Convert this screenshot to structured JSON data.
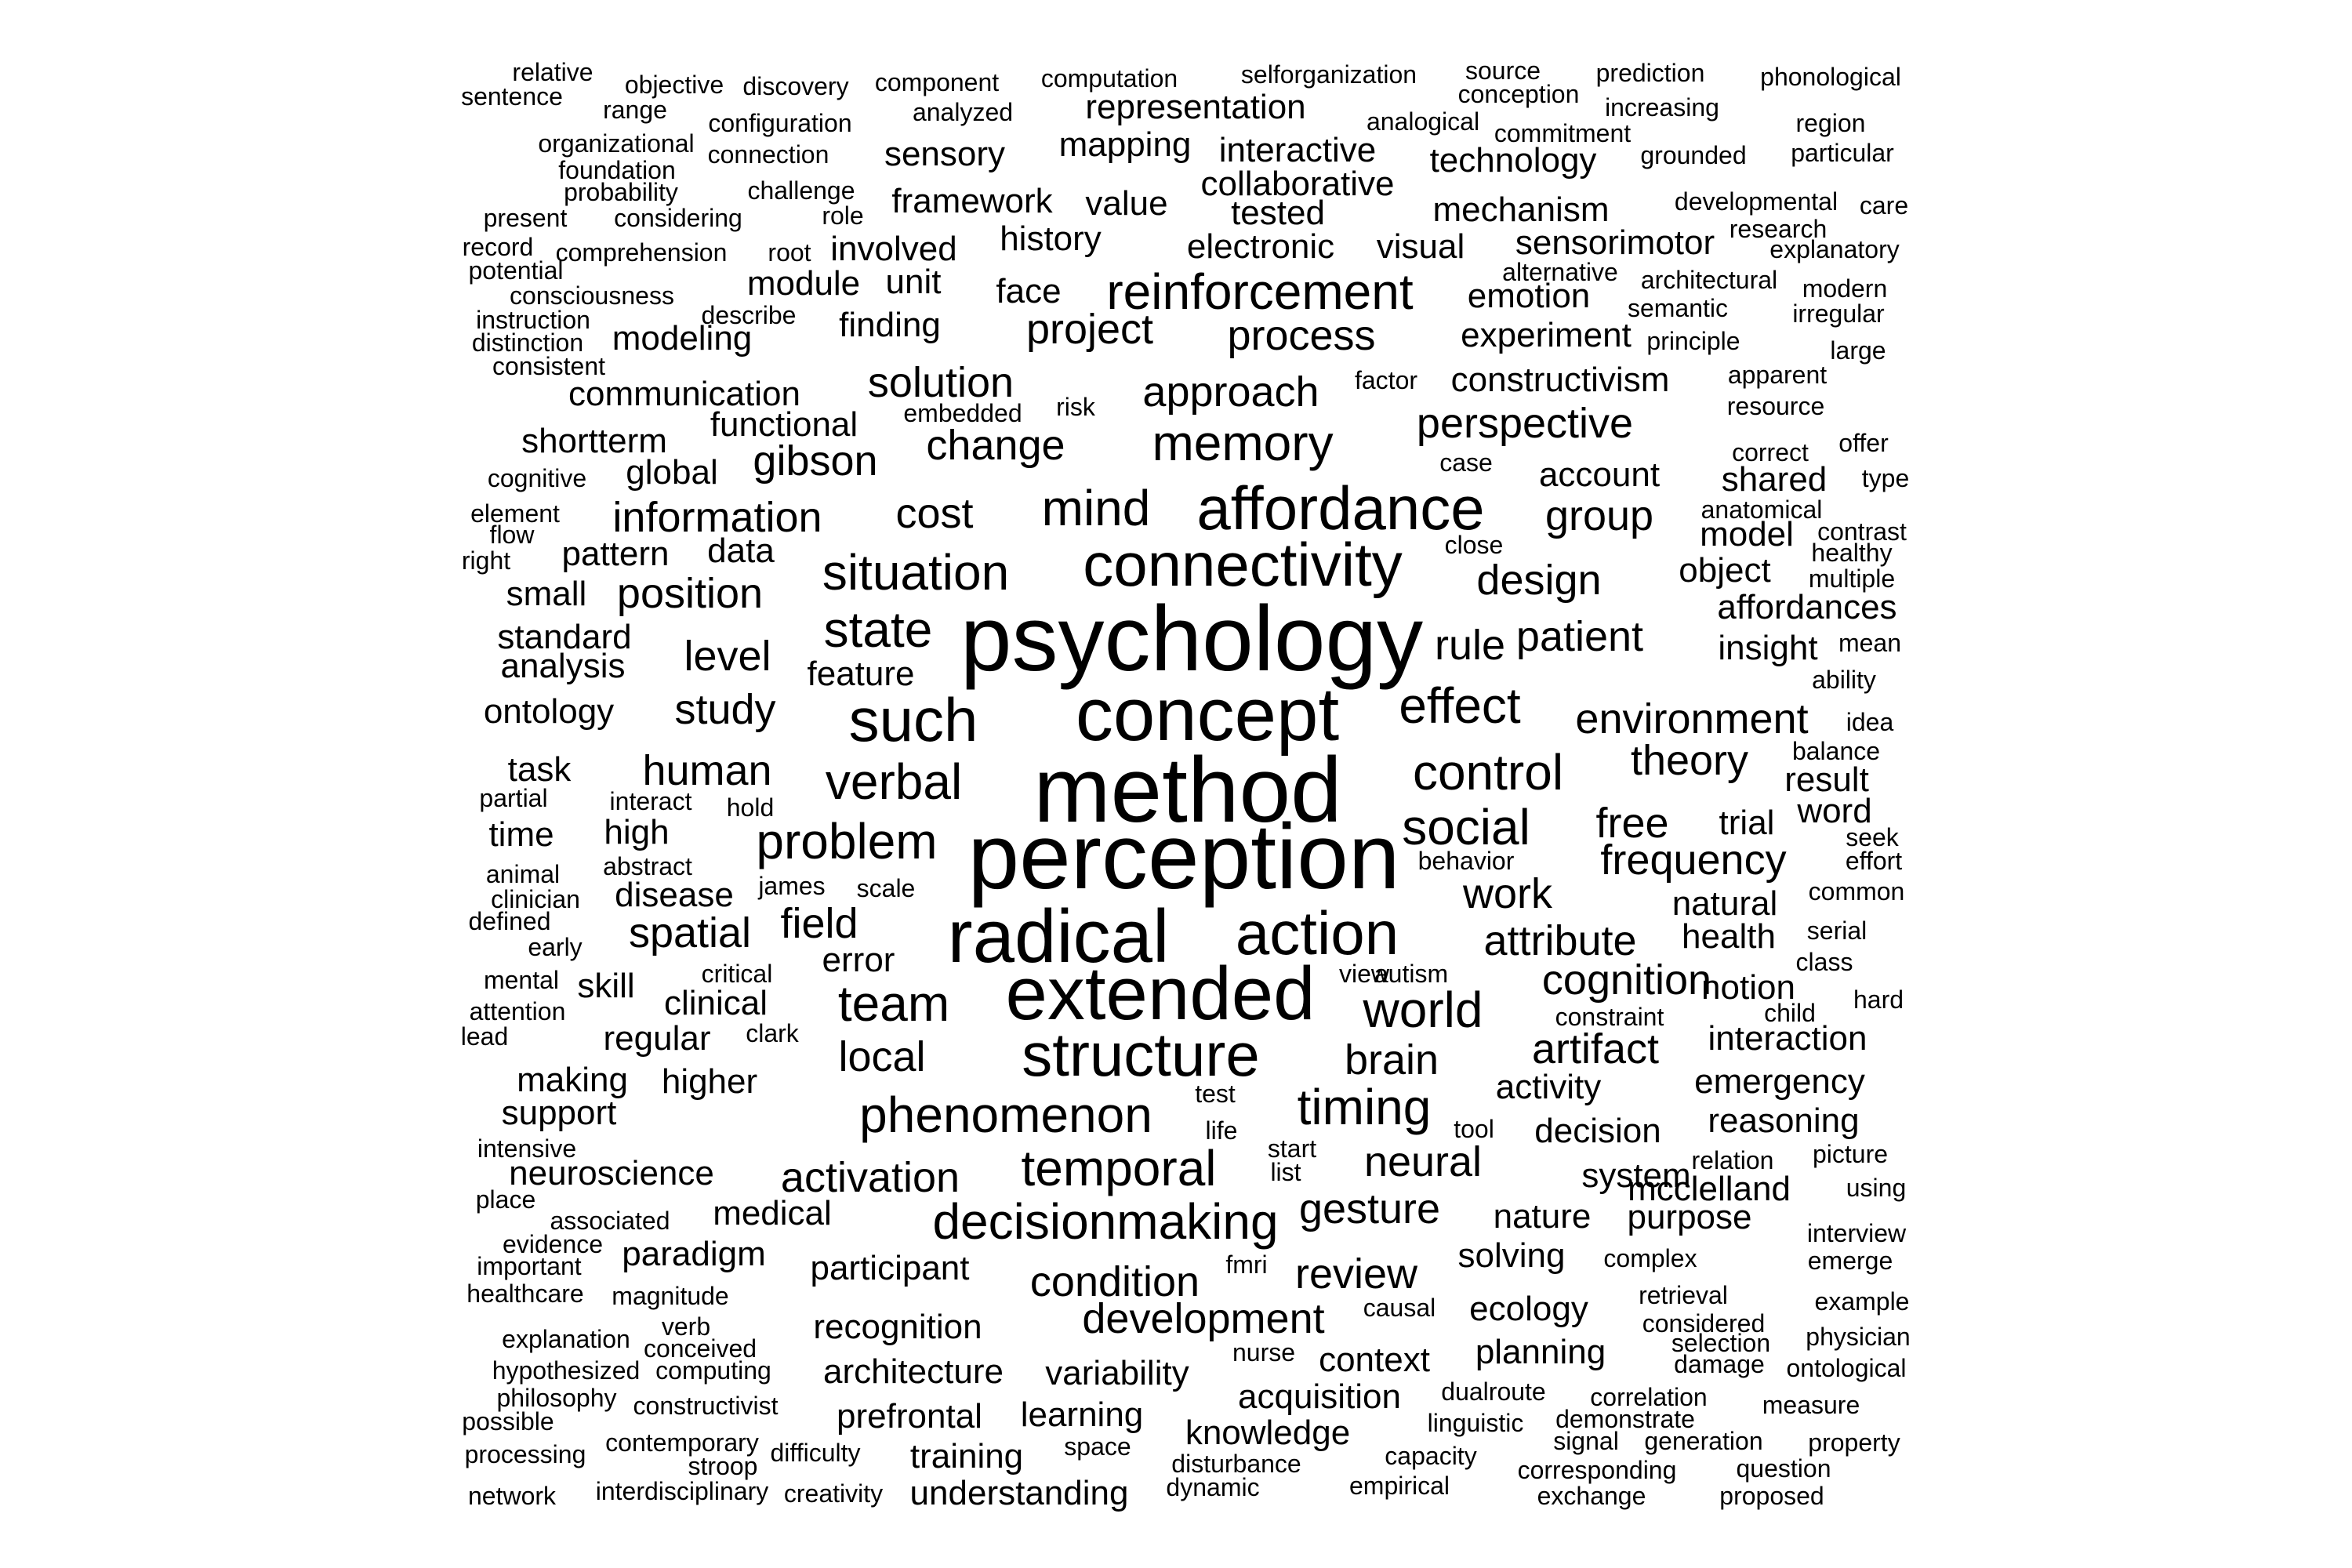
{
  "cloud": {
    "words": [
      [
        "method",
        9
      ],
      [
        "perception",
        9
      ],
      [
        "psychology",
        9
      ],
      [
        "concept",
        8
      ],
      [
        "radical",
        8
      ],
      [
        "extended",
        8
      ],
      [
        "connectivity",
        7
      ],
      [
        "affordance",
        7
      ],
      [
        "structure",
        7
      ],
      [
        "action",
        7
      ],
      [
        "such",
        7
      ],
      [
        "memory",
        6
      ],
      [
        "social",
        6
      ],
      [
        "verbal",
        6
      ],
      [
        "effect",
        6
      ],
      [
        "control",
        6
      ],
      [
        "temporal",
        6
      ],
      [
        "world",
        6
      ],
      [
        "state",
        6
      ],
      [
        "phenomenon",
        6
      ],
      [
        "timing",
        6
      ],
      [
        "situation",
        6
      ],
      [
        "mind",
        6
      ],
      [
        "problem",
        6
      ],
      [
        "team",
        6
      ],
      [
        "reinforcement",
        6
      ],
      [
        "decisionmaking",
        6
      ],
      [
        "solution",
        5
      ],
      [
        "change",
        5
      ],
      [
        "approach",
        5
      ],
      [
        "project",
        5
      ],
      [
        "process",
        5
      ],
      [
        "perspective",
        5
      ],
      [
        "cost",
        5
      ],
      [
        "rule",
        5
      ],
      [
        "patient",
        5
      ],
      [
        "design",
        5
      ],
      [
        "gesture",
        5
      ],
      [
        "neural",
        5
      ],
      [
        "brain",
        5
      ],
      [
        "work",
        5
      ],
      [
        "attribute",
        5
      ],
      [
        "field",
        5
      ],
      [
        "local",
        5
      ],
      [
        "development",
        5
      ],
      [
        "frequency",
        5
      ],
      [
        "environment",
        5
      ],
      [
        "study",
        5
      ],
      [
        "information",
        5
      ],
      [
        "review",
        5
      ],
      [
        "condition",
        5
      ],
      [
        "artifact",
        5
      ],
      [
        "cognition",
        5
      ],
      [
        "theory",
        5
      ],
      [
        "group",
        5
      ],
      [
        "gibson",
        5
      ],
      [
        "position",
        5
      ],
      [
        "human",
        5
      ],
      [
        "activation",
        5
      ],
      [
        "spatial",
        5
      ],
      [
        "free",
        5
      ],
      [
        "level",
        5
      ],
      [
        "recognition",
        4
      ],
      [
        "participant",
        4
      ],
      [
        "variability",
        4
      ],
      [
        "learning",
        4
      ],
      [
        "error",
        4
      ],
      [
        "activity",
        4
      ],
      [
        "decision",
        4
      ],
      [
        "system",
        4
      ],
      [
        "nature",
        4
      ],
      [
        "solving",
        4
      ],
      [
        "medical",
        4
      ],
      [
        "clinical",
        4
      ],
      [
        "disease",
        4
      ],
      [
        "functional",
        4
      ],
      [
        "communication",
        4
      ],
      [
        "constructivism",
        4
      ],
      [
        "experiment",
        4
      ],
      [
        "account",
        4
      ],
      [
        "object",
        4
      ],
      [
        "natural",
        4
      ],
      [
        "trial",
        4
      ],
      [
        "feature",
        4
      ],
      [
        "data",
        4
      ],
      [
        "shortterm",
        4
      ],
      [
        "global",
        4
      ],
      [
        "finding",
        4
      ],
      [
        "history",
        4
      ],
      [
        "framework",
        4
      ],
      [
        "value",
        4
      ],
      [
        "tested",
        4
      ],
      [
        "visual",
        4
      ],
      [
        "electronic",
        4
      ],
      [
        "face",
        4
      ],
      [
        "unit",
        4
      ],
      [
        "module",
        4
      ],
      [
        "involved",
        4
      ],
      [
        "sensory",
        4
      ],
      [
        "mapping",
        4
      ],
      [
        "representation",
        4
      ],
      [
        "interactive",
        4
      ],
      [
        "collaborative",
        4
      ],
      [
        "technology",
        4
      ],
      [
        "mechanism",
        4
      ],
      [
        "sensorimotor",
        4
      ],
      [
        "emotion",
        4
      ],
      [
        "high",
        4
      ],
      [
        "regular",
        4
      ],
      [
        "higher",
        4
      ],
      [
        "neuroscience",
        4
      ],
      [
        "paradigm",
        4
      ],
      [
        "planning",
        4
      ],
      [
        "ecology",
        4
      ],
      [
        "context",
        4
      ],
      [
        "acquisition",
        4
      ],
      [
        "knowledge",
        4
      ],
      [
        "training",
        4
      ],
      [
        "understanding",
        4
      ],
      [
        "prefrontal",
        4
      ],
      [
        "architecture",
        4
      ],
      [
        "affordances",
        4
      ],
      [
        "insight",
        4
      ],
      [
        "emergency",
        4
      ],
      [
        "reasoning",
        4
      ],
      [
        "interaction",
        4
      ],
      [
        "notion",
        4
      ],
      [
        "health",
        4
      ],
      [
        "purpose",
        4
      ],
      [
        "mcclelland",
        4
      ],
      [
        "analysis",
        4
      ],
      [
        "standard",
        4
      ],
      [
        "ontology",
        4
      ],
      [
        "task",
        4
      ],
      [
        "time",
        4
      ],
      [
        "skill",
        4
      ],
      [
        "support",
        4
      ],
      [
        "making",
        4
      ],
      [
        "pattern",
        4
      ],
      [
        "small",
        4
      ],
      [
        "modeling",
        4
      ],
      [
        "shared",
        4
      ],
      [
        "model",
        4
      ],
      [
        "word",
        4
      ],
      [
        "result",
        4
      ],
      [
        "scale",
        3
      ],
      [
        "life",
        3
      ],
      [
        "relation",
        3
      ],
      [
        "retrieval",
        3
      ],
      [
        "complex",
        3
      ],
      [
        "magnitude",
        3
      ],
      [
        "causal",
        3
      ],
      [
        "dualroute",
        3
      ],
      [
        "linguistic",
        3
      ],
      [
        "space",
        3
      ],
      [
        "dynamic",
        3
      ],
      [
        "empirical",
        3
      ],
      [
        "constraint",
        3
      ],
      [
        "serial",
        3
      ],
      [
        "correct",
        3
      ],
      [
        "resource",
        3
      ],
      [
        "principle",
        3
      ],
      [
        "semantic",
        3
      ],
      [
        "describe",
        3
      ],
      [
        "role",
        3
      ],
      [
        "animal",
        3
      ],
      [
        "partial",
        3
      ],
      [
        "interact",
        3
      ],
      [
        "mental",
        3
      ],
      [
        "attention",
        3
      ],
      [
        "early",
        3
      ],
      [
        "defined",
        3
      ],
      [
        "relative",
        3
      ],
      [
        "sentence",
        3
      ],
      [
        "objective",
        3
      ],
      [
        "discovery",
        3
      ],
      [
        "component",
        3
      ],
      [
        "computation",
        3
      ],
      [
        "selforganization",
        3
      ],
      [
        "source",
        3
      ],
      [
        "prediction",
        3
      ],
      [
        "phonological",
        3
      ],
      [
        "conception",
        3
      ],
      [
        "increasing",
        3
      ],
      [
        "range",
        3
      ],
      [
        "configuration",
        3
      ],
      [
        "analyzed",
        3
      ],
      [
        "analogical",
        3
      ],
      [
        "commitment",
        3
      ],
      [
        "region",
        3
      ],
      [
        "organizational",
        3
      ],
      [
        "connection",
        3
      ],
      [
        "grounded",
        3
      ],
      [
        "particular",
        3
      ],
      [
        "foundation",
        3
      ],
      [
        "probability",
        3
      ],
      [
        "challenge",
        3
      ],
      [
        "developmental",
        3
      ],
      [
        "care",
        3
      ],
      [
        "present",
        3
      ],
      [
        "considering",
        3
      ],
      [
        "research",
        3
      ],
      [
        "explanatory",
        3
      ],
      [
        "record",
        3
      ],
      [
        "comprehension",
        3
      ],
      [
        "root",
        3
      ],
      [
        "potential",
        3
      ],
      [
        "alternative",
        3
      ],
      [
        "architectural",
        3
      ],
      [
        "modern",
        3
      ],
      [
        "consciousness",
        3
      ],
      [
        "instruction",
        3
      ],
      [
        "irregular",
        3
      ],
      [
        "distinction",
        3
      ],
      [
        "large",
        3
      ],
      [
        "consistent",
        3
      ],
      [
        "apparent",
        3
      ],
      [
        "factor",
        3
      ],
      [
        "embedded",
        3
      ],
      [
        "risk",
        3
      ],
      [
        "offer",
        3
      ],
      [
        "case",
        3
      ],
      [
        "cognitive",
        3
      ],
      [
        "type",
        3
      ],
      [
        "element",
        3
      ],
      [
        "anatomical",
        3
      ],
      [
        "flow",
        3
      ],
      [
        "contrast",
        3
      ],
      [
        "close",
        3
      ],
      [
        "right",
        3
      ],
      [
        "healthy",
        3
      ],
      [
        "multiple",
        3
      ],
      [
        "mean",
        3
      ],
      [
        "ability",
        3
      ],
      [
        "idea",
        3
      ],
      [
        "balance",
        3
      ],
      [
        "hold",
        3
      ],
      [
        "abstract",
        3
      ],
      [
        "james",
        3
      ],
      [
        "seek",
        3
      ],
      [
        "behavior",
        3
      ],
      [
        "effort",
        3
      ],
      [
        "clinician",
        3
      ],
      [
        "common",
        3
      ],
      [
        "critical",
        3
      ],
      [
        "view",
        3
      ],
      [
        "autism",
        3
      ],
      [
        "class",
        3
      ],
      [
        "clark",
        3
      ],
      [
        "child",
        3
      ],
      [
        "hard",
        3
      ],
      [
        "lead",
        3
      ],
      [
        "test",
        3
      ],
      [
        "tool",
        3
      ],
      [
        "start",
        3
      ],
      [
        "list",
        3
      ],
      [
        "intensive",
        3
      ],
      [
        "picture",
        3
      ],
      [
        "place",
        3
      ],
      [
        "using",
        3
      ],
      [
        "associated",
        3
      ],
      [
        "interview",
        3
      ],
      [
        "evidence",
        3
      ],
      [
        "fmri",
        3
      ],
      [
        "important",
        3
      ],
      [
        "emerge",
        3
      ],
      [
        "healthcare",
        3
      ],
      [
        "example",
        3
      ],
      [
        "explanation",
        3
      ],
      [
        "verb",
        3
      ],
      [
        "conceived",
        3
      ],
      [
        "considered",
        3
      ],
      [
        "nurse",
        3
      ],
      [
        "selection",
        3
      ],
      [
        "physician",
        3
      ],
      [
        "hypothesized",
        3
      ],
      [
        "computing",
        3
      ],
      [
        "damage",
        3
      ],
      [
        "ontological",
        3
      ],
      [
        "philosophy",
        3
      ],
      [
        "correlation",
        3
      ],
      [
        "constructivist",
        3
      ],
      [
        "measure",
        3
      ],
      [
        "possible",
        3
      ],
      [
        "demonstrate",
        3
      ],
      [
        "contemporary",
        3
      ],
      [
        "signal",
        3
      ],
      [
        "generation",
        3
      ],
      [
        "property",
        3
      ],
      [
        "processing",
        3
      ],
      [
        "stroop",
        3
      ],
      [
        "difficulty",
        3
      ],
      [
        "disturbance",
        3
      ],
      [
        "capacity",
        3
      ],
      [
        "corresponding",
        3
      ],
      [
        "question",
        3
      ],
      [
        "network",
        3
      ],
      [
        "interdisciplinary",
        3
      ],
      [
        "creativity",
        3
      ],
      [
        "exchange",
        3
      ],
      [
        "proposed",
        3
      ]
    ]
  }
}
